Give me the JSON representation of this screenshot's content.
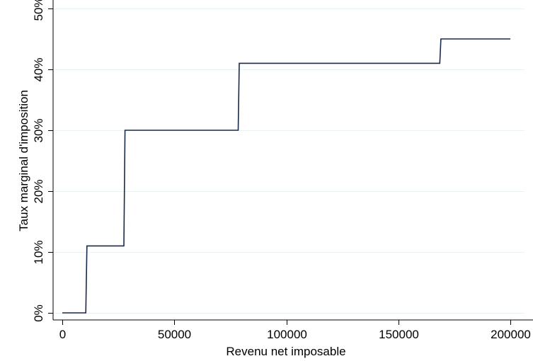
{
  "chart_data": {
    "type": "line",
    "step": true,
    "xlabel": "Revenu net imposable",
    "ylabel": "Taux marginal d'imposition",
    "xlim": [
      0,
      200000
    ],
    "ylim": [
      0,
      0.5
    ],
    "x_ticks": [
      0,
      50000,
      100000,
      150000,
      200000
    ],
    "x_tick_labels": [
      "0",
      "50000",
      "100000",
      "150000",
      "200000"
    ],
    "y_ticks": [
      0,
      0.1,
      0.2,
      0.3,
      0.4,
      0.5
    ],
    "y_tick_labels": [
      "0%",
      "10%",
      "20%",
      "30%",
      "40%",
      "50%"
    ],
    "grid": "horizontal",
    "series": [
      {
        "color": "#1a2a4a",
        "points": [
          {
            "x": 0,
            "y": 0
          },
          {
            "x": 10500,
            "y": 0
          },
          {
            "x": 11000,
            "y": 0.11
          },
          {
            "x": 27500,
            "y": 0.11
          },
          {
            "x": 28000,
            "y": 0.3
          },
          {
            "x": 78500,
            "y": 0.3
          },
          {
            "x": 79000,
            "y": 0.41
          },
          {
            "x": 168500,
            "y": 0.41
          },
          {
            "x": 169000,
            "y": 0.45
          },
          {
            "x": 200000,
            "y": 0.45
          }
        ]
      }
    ]
  }
}
